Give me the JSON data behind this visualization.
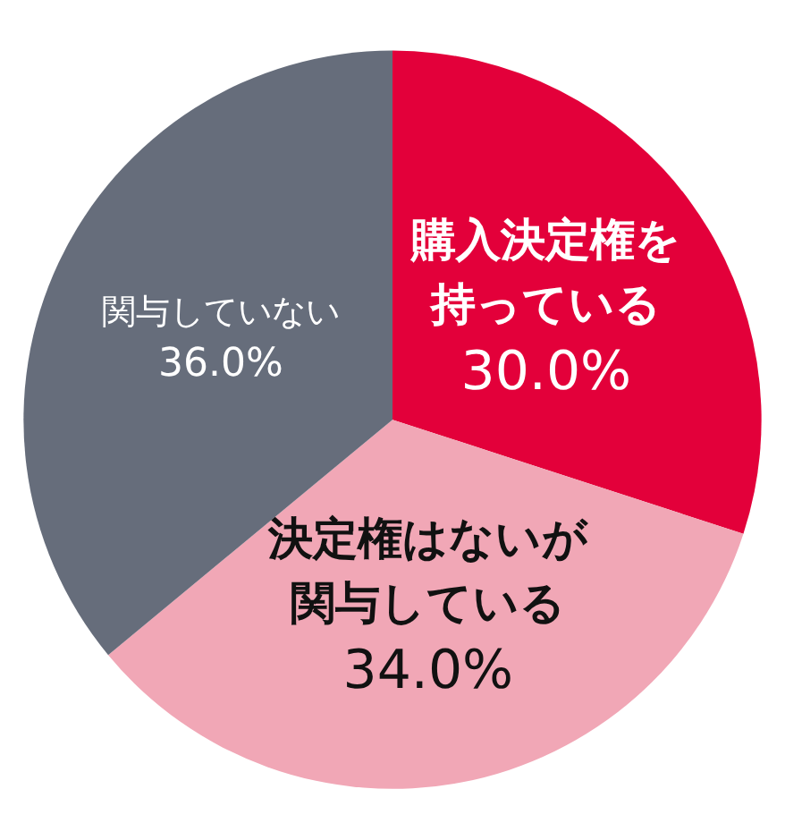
{
  "chart_data": {
    "type": "pie",
    "categories": [
      "購入決定権を持っている",
      "決定権はないが関与している",
      "関与していない"
    ],
    "values": [
      30.0,
      34.0,
      36.0
    ],
    "value_labels": [
      "30.0%",
      "34.0%",
      "36.0%"
    ],
    "colors": [
      "#e3003a",
      "#f1a7b6",
      "#666d7b"
    ],
    "legend": false
  }
}
